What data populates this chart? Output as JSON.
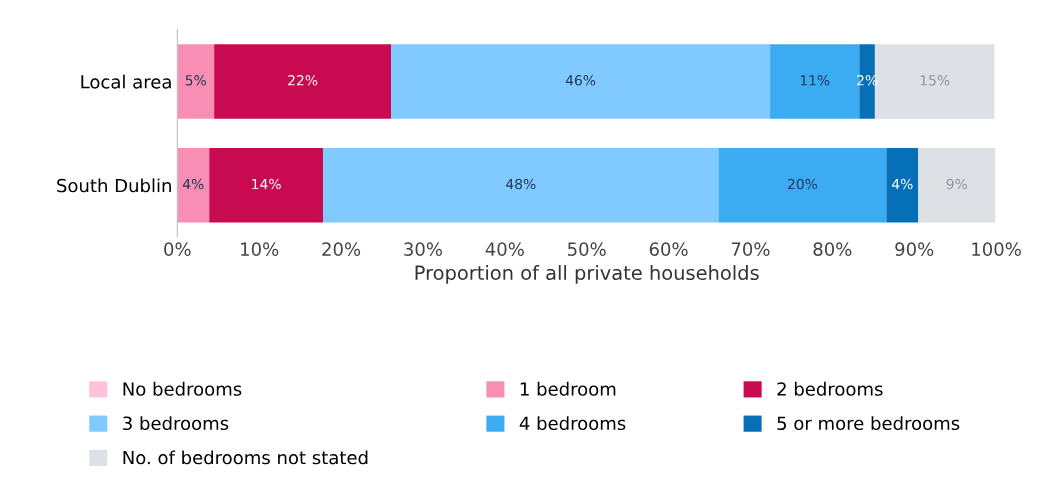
{
  "chart_data": {
    "type": "bar",
    "orientation": "horizontal",
    "stacked": true,
    "categories": [
      "Local area",
      "South Dublin"
    ],
    "xlabel": "Proportion of all private households",
    "xlim": [
      0,
      100
    ],
    "xticks": [
      {
        "value": 0,
        "label": "0%"
      },
      {
        "value": 10,
        "label": "10%"
      },
      {
        "value": 20,
        "label": "20%"
      },
      {
        "value": 30,
        "label": "30%"
      },
      {
        "value": 40,
        "label": "40%"
      },
      {
        "value": 50,
        "label": "50%"
      },
      {
        "value": 60,
        "label": "60%"
      },
      {
        "value": 70,
        "label": "70%"
      },
      {
        "value": 80,
        "label": "80%"
      },
      {
        "value": 90,
        "label": "90%"
      },
      {
        "value": 100,
        "label": "100%"
      }
    ],
    "series": [
      {
        "name": "No bedrooms",
        "color": "#ffc2d9",
        "values": [
          null,
          null
        ]
      },
      {
        "name": "1 bedroom",
        "color": "#f88eb4",
        "values": [
          4.5,
          3.9
        ],
        "value_labels": [
          "5%",
          "4%"
        ]
      },
      {
        "name": "2 bedrooms",
        "color": "#c80a50",
        "values": [
          21.6,
          13.9
        ],
        "value_labels": [
          "22%",
          "14%"
        ]
      },
      {
        "name": "3 bedrooms",
        "color": "#80caff",
        "values": [
          46.3,
          48.3
        ],
        "value_labels": [
          "46%",
          "48%"
        ]
      },
      {
        "name": "4 bedrooms",
        "color": "#3cacf2",
        "values": [
          10.9,
          20.5
        ],
        "value_labels": [
          "11%",
          "20%"
        ]
      },
      {
        "name": "5 or more bedrooms",
        "color": "#0570b8",
        "values": [
          1.9,
          3.9
        ],
        "value_labels": [
          "2%",
          "4%"
        ]
      },
      {
        "name": "No. of bedrooms not stated",
        "color": "#dde1e6",
        "values": [
          14.6,
          9.4
        ],
        "value_labels": [
          "15%",
          "9%"
        ]
      }
    ],
    "legend": "bottom"
  }
}
